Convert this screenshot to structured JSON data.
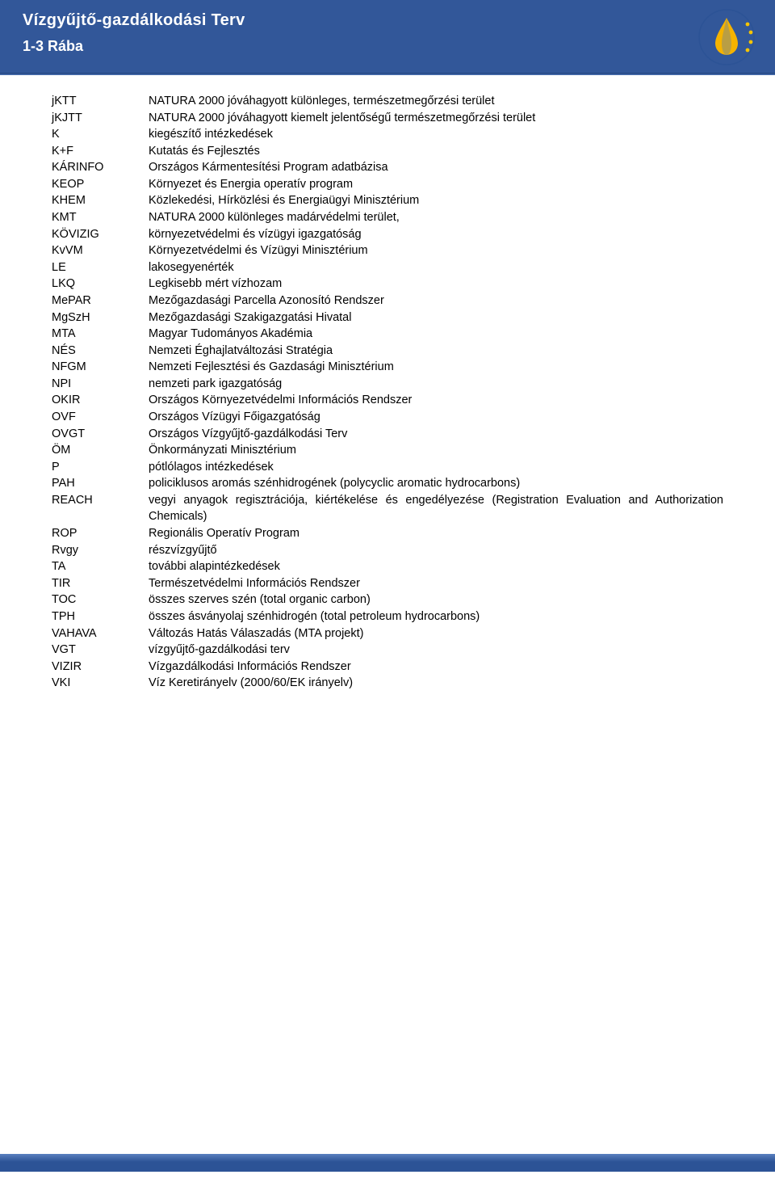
{
  "header": {
    "title": "Vízgyűjtő-gazdálkodási Terv",
    "subtitle": "1-3 Rába"
  },
  "colors": {
    "header_bg": "#325799",
    "text": "#000000",
    "page_bg": "#ffffff"
  },
  "typography": {
    "body_fontsize_pt": 11,
    "header_title_fontsize_pt": 15,
    "header_sub_fontsize_pt": 13,
    "font_family": "Arial"
  },
  "logo": {
    "name": "water-drop-eu-stars-icon",
    "drop_fill": "#f5b300",
    "drop_shade": "#4a78c2",
    "star_fill": "#f5c400",
    "outer_ring": "#2c5396"
  },
  "abbreviations": [
    {
      "abbr": "jKTT",
      "def": "NATURA 2000 jóváhagyott különleges, természetmegőrzési terület"
    },
    {
      "abbr": "jKJTT",
      "def": "NATURA 2000 jóváhagyott kiemelt jelentőségű természetmegőrzési terület"
    },
    {
      "abbr": "K",
      "def": "kiegészítő intézkedések"
    },
    {
      "abbr": "K+F",
      "def": "Kutatás és Fejlesztés"
    },
    {
      "abbr": "KÁRINFO",
      "def": "Országos Kármentesítési Program adatbázisa"
    },
    {
      "abbr": "KEOP",
      "def": "Környezet és Energia operatív program"
    },
    {
      "abbr": "KHEM",
      "def": "Közlekedési, Hírközlési és Energiaügyi Minisztérium"
    },
    {
      "abbr": "KMT",
      "def": "NATURA 2000 különleges madárvédelmi terület,"
    },
    {
      "abbr": "KÖVIZIG",
      "def": "környezetvédelmi és vízügyi igazgatóság"
    },
    {
      "abbr": "KvVM",
      "def": "Környezetvédelmi és Vízügyi Minisztérium"
    },
    {
      "abbr": "LE",
      "def": "lakosegyenérték"
    },
    {
      "abbr": "LKQ",
      "def": "Legkisebb mért vízhozam"
    },
    {
      "abbr": "MePAR",
      "def": "Mezőgazdasági Parcella Azonosító Rendszer"
    },
    {
      "abbr": "MgSzH",
      "def": "Mezőgazdasági Szakigazgatási Hivatal"
    },
    {
      "abbr": "MTA",
      "def": "Magyar Tudományos Akadémia"
    },
    {
      "abbr": "NÉS",
      "def": "Nemzeti Éghajlatváltozási Stratégia"
    },
    {
      "abbr": "NFGM",
      "def": "Nemzeti Fejlesztési és Gazdasági Minisztérium"
    },
    {
      "abbr": "NPI",
      "def": "nemzeti park igazgatóság"
    },
    {
      "abbr": "OKIR",
      "def": "Országos Környezetvédelmi Információs Rendszer"
    },
    {
      "abbr": "OVF",
      "def": "Országos Vízügyi Főigazgatóság"
    },
    {
      "abbr": "OVGT",
      "def": "Országos Vízgyűjtő-gazdálkodási Terv"
    },
    {
      "abbr": "ÖM",
      "def": "Önkormányzati Minisztérium"
    },
    {
      "abbr": "P",
      "def": "pótlólagos intézkedések"
    },
    {
      "abbr": "PAH",
      "def": "policiklusos aromás szénhidrogének (polycyclic aromatic hydrocarbons)"
    },
    {
      "abbr": "REACH",
      "def": "vegyi anyagok regisztrációja, kiértékelése és engedélyezése (Registration Evaluation and Authorization Chemicals)",
      "justify": true
    },
    {
      "abbr": "ROP",
      "def": "Regionális Operatív Program"
    },
    {
      "abbr": "Rvgy",
      "def": "részvízgyűjtő"
    },
    {
      "abbr": "TA",
      "def": "további alapintézkedések"
    },
    {
      "abbr": "TIR",
      "def": "Természetvédelmi Információs Rendszer"
    },
    {
      "abbr": "TOC",
      "def": "összes szerves szén (total organic carbon)"
    },
    {
      "abbr": "TPH",
      "def": "összes ásványolaj szénhidrogén (total petroleum hydrocarbons)"
    },
    {
      "abbr": "VAHAVA",
      "def": "Változás Hatás Válaszadás (MTA projekt)"
    },
    {
      "abbr": "VGT",
      "def": "vízgyűjtő-gazdálkodási terv"
    },
    {
      "abbr": "VIZIR",
      "def": "Vízgazdálkodási Információs Rendszer"
    },
    {
      "abbr": "VKI",
      "def": "Víz Keretirányelv (2000/60/EK irányelv)"
    }
  ]
}
